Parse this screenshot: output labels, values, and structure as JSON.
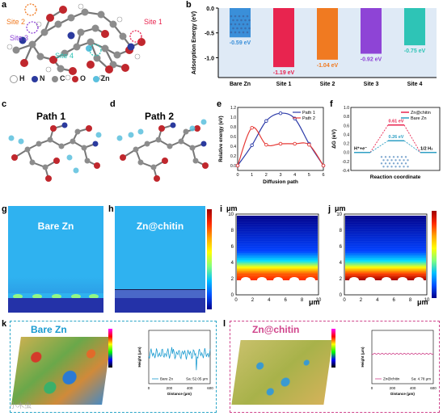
{
  "panels": {
    "a": "a",
    "b": "b",
    "c": "c",
    "d": "d",
    "e": "e",
    "f": "f",
    "g": "g",
    "h": "h",
    "i": "i",
    "j": "j",
    "k": "k",
    "l": "l"
  },
  "panel_a": {
    "site_labels": [
      "Site 1",
      "Site 2",
      "Site 3",
      "Site 4"
    ],
    "legend": [
      "H",
      "N",
      "C",
      "O",
      "Zn"
    ],
    "colors": {
      "H": "#ffffff",
      "N": "#2b3a9e",
      "C": "#8c8c8c",
      "O": "#c0272d",
      "Zn": "#5bc0de"
    }
  },
  "panel_c": {
    "title": "Path 1"
  },
  "panel_d": {
    "title": "Path 2"
  },
  "panel_g": {
    "title": "Bare Zn"
  },
  "panel_h": {
    "title": "Zn@chitin"
  },
  "panel_i": {
    "yunit": "μm",
    "xunit": "μm",
    "xticks": [
      "0",
      "2",
      "4",
      "6",
      "8",
      "10"
    ],
    "yticks": [
      "0",
      "2",
      "4",
      "6",
      "8",
      "10"
    ]
  },
  "panel_j": {
    "yunit": "μm",
    "xunit": "μm",
    "xticks": [
      "0",
      "2",
      "4",
      "6",
      "8",
      "10"
    ],
    "yticks": [
      "0",
      "2",
      "4",
      "6",
      "8",
      "10"
    ]
  },
  "panel_k": {
    "title": "Bare Zn",
    "inset_legend": "Bare Zn",
    "inset_value": "Sa: 52.05 μm",
    "xlabel": "Distance (μm)",
    "ylabel": "Height (μm)",
    "xticks": [
      "0",
      "200",
      "400",
      "600"
    ]
  },
  "panel_l": {
    "title": "Zn@chitin",
    "inset_legend": "Zn@chitin",
    "inset_value": "Sa: 4.78 μm",
    "xlabel": "Distance (μm)",
    "ylabel": "Height (μm)",
    "xticks": [
      "0",
      "200",
      "400",
      "600"
    ]
  },
  "watermark": "小木虫",
  "chart_data": [
    {
      "panel": "b",
      "type": "bar",
      "categories": [
        "Bare Zn",
        "Site 1",
        "Site 2",
        "Site 3",
        "Site 4"
      ],
      "values": [
        -0.59,
        -1.19,
        -1.04,
        -0.92,
        -0.75
      ],
      "value_labels": [
        "-0.59 eV",
        "-1.19 eV",
        "-1.04 eV",
        "-0.92 eV",
        "-0.75 eV"
      ],
      "colors": [
        "#3a8fd9",
        "#e8244f",
        "#f07a21",
        "#8e44d6",
        "#2ec4b6"
      ],
      "ylabel": "Adsorption Energy (eV)",
      "ylim": [
        0,
        -1.4
      ],
      "yticks": [
        "0.0",
        "-0.5",
        "-1.0"
      ]
    },
    {
      "panel": "e",
      "type": "line",
      "xlabel": "Diffusion path",
      "ylabel": "Relative energy (eV)",
      "xlim": [
        0,
        6
      ],
      "ylim": [
        -0.1,
        1.2
      ],
      "xticks": [
        "0",
        "1",
        "2",
        "3",
        "4",
        "5",
        "6"
      ],
      "yticks": [
        "0.0",
        "0.2",
        "0.4",
        "0.6",
        "0.8",
        "1.0",
        "1.2"
      ],
      "series": [
        {
          "name": "Path 1",
          "color": "#2b3aa8",
          "x": [
            0,
            1,
            2,
            3,
            4,
            5,
            6
          ],
          "y": [
            0.0,
            0.42,
            0.92,
            1.08,
            0.97,
            0.45,
            0.0
          ]
        },
        {
          "name": "Path 2",
          "color": "#e53935",
          "x": [
            0,
            1,
            2,
            3,
            4,
            5,
            6
          ],
          "y": [
            0.0,
            0.78,
            0.43,
            0.45,
            0.45,
            0.43,
            0.0
          ]
        }
      ]
    },
    {
      "panel": "f",
      "type": "line",
      "xlabel": "Reaction coordinate",
      "ylabel": "ΔG (eV)",
      "ylim": [
        -0.4,
        1.0
      ],
      "yticks": [
        "-0.4",
        "-0.2",
        "0.0",
        "0.2",
        "0.4",
        "0.6",
        "0.8",
        "1.0"
      ],
      "state_labels": [
        "H⁺+e⁻",
        "1/2 H₂"
      ],
      "series": [
        {
          "name": "Zn@chitin",
          "color": "#e8244f",
          "values": [
            0,
            0.61,
            0
          ],
          "label": "0.61 eV"
        },
        {
          "name": "Bare Zn",
          "color": "#2e9fc4",
          "values": [
            0,
            0.26,
            0
          ],
          "label": "0.26 eV"
        }
      ]
    }
  ]
}
